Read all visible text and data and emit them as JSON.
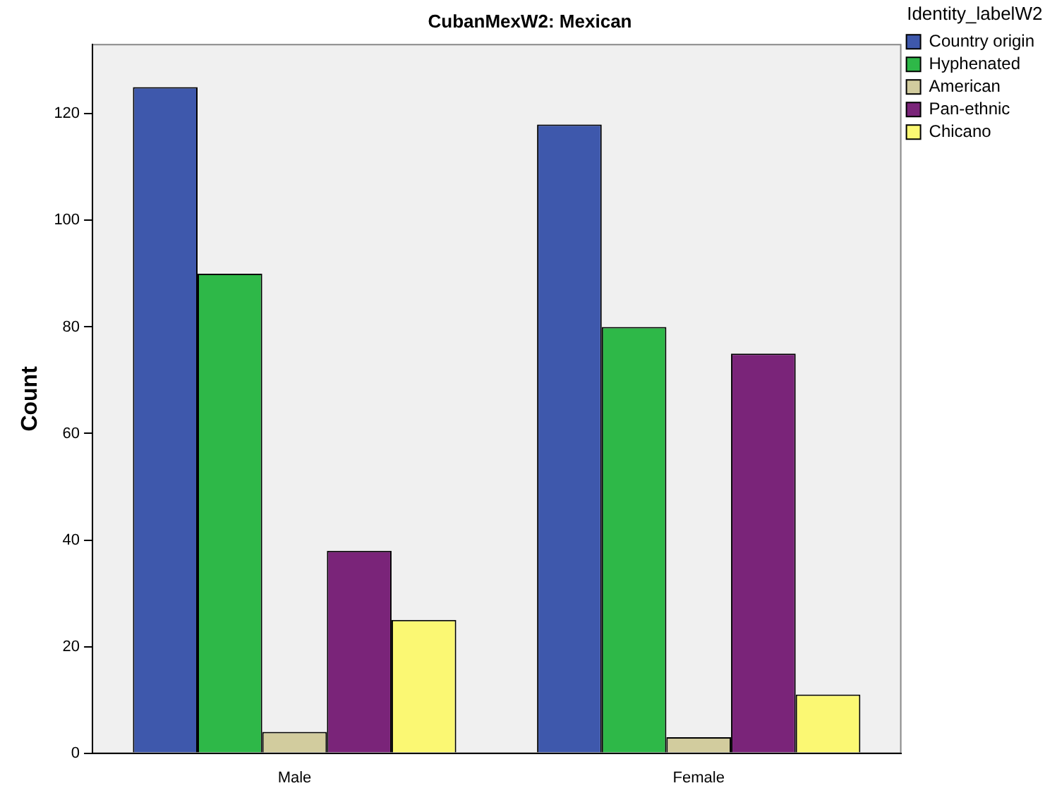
{
  "chart_data": {
    "type": "bar",
    "title": "CubanMexW2: Mexican",
    "ylabel": "Count",
    "legend_title": "Identity_labelW2",
    "legend": "right",
    "grid": false,
    "categories": [
      "Male",
      "Female"
    ],
    "series": [
      {
        "name": "Country origin",
        "color": "#3e58ac",
        "values": [
          125,
          118
        ]
      },
      {
        "name": "Hyphenated",
        "color": "#2eb848",
        "values": [
          90,
          80
        ]
      },
      {
        "name": "American",
        "color": "#d2cc9e",
        "values": [
          4,
          3
        ]
      },
      {
        "name": "Pan-ethnic",
        "color": "#7a2479",
        "values": [
          38,
          75
        ]
      },
      {
        "name": "Chicano",
        "color": "#fbf873",
        "values": [
          25,
          11
        ]
      }
    ],
    "ylim": [
      0,
      133
    ],
    "yticks": [
      0,
      20,
      40,
      60,
      80,
      100,
      120
    ]
  }
}
